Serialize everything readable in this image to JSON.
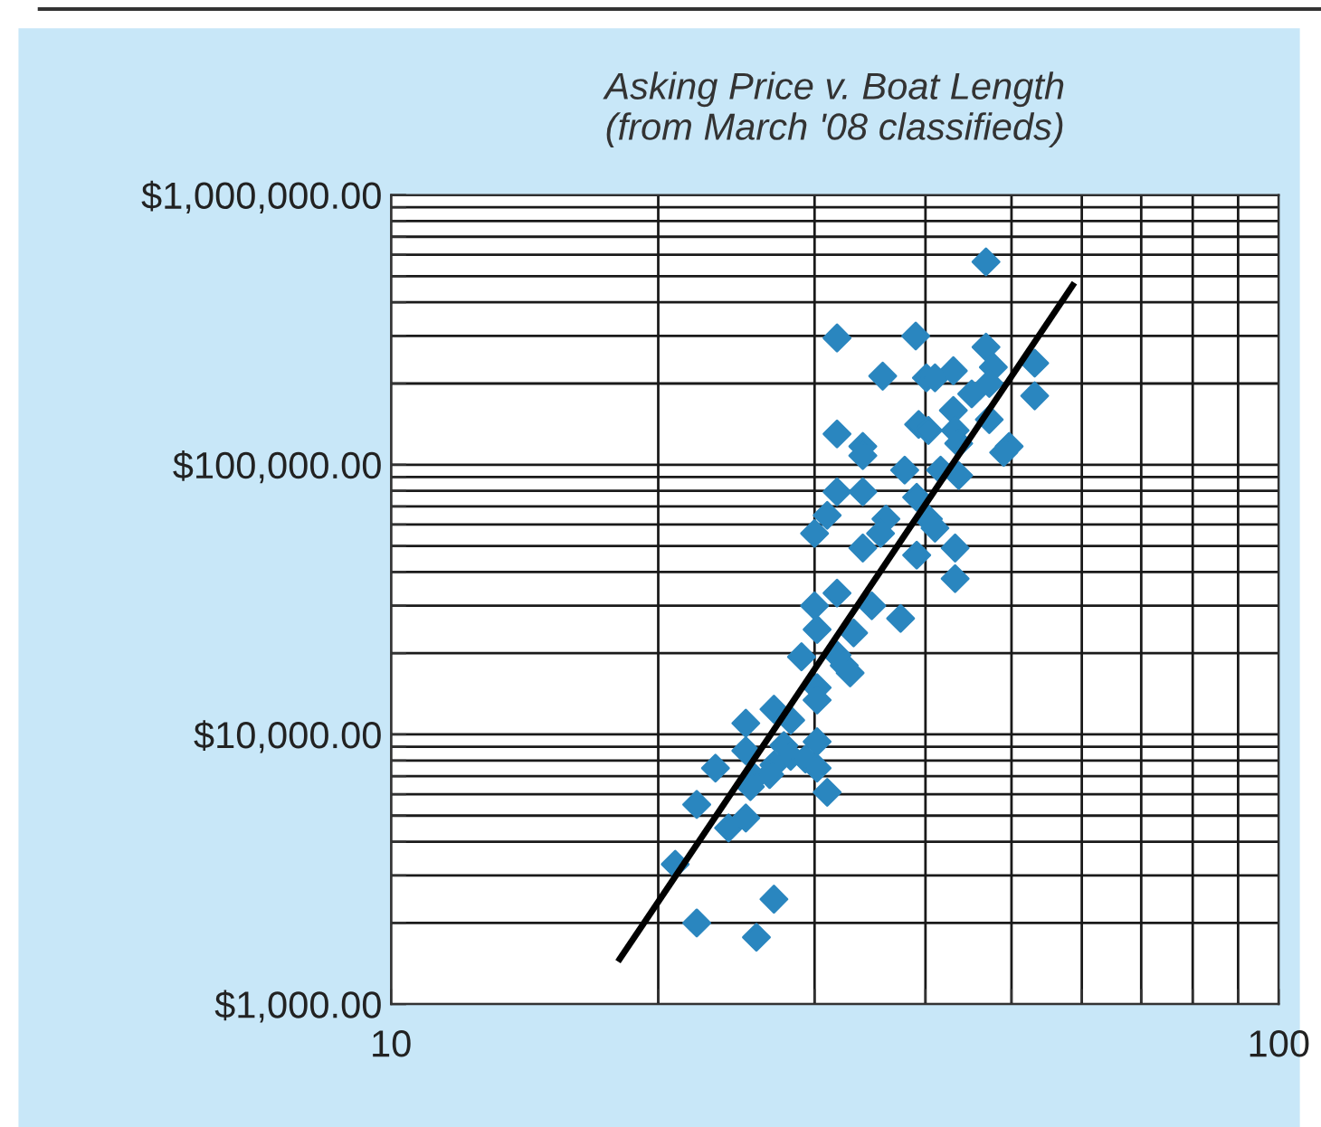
{
  "chart_data": {
    "type": "scatter",
    "title": "Asking Price v. Boat Length\n(from March '08 classifieds)",
    "log": "xy",
    "grid": true,
    "marker": "diamond",
    "legend": false,
    "xlim": [
      10,
      100
    ],
    "ylim": [
      1000,
      1000000
    ],
    "xticks": [
      {
        "value": 10,
        "label": "10"
      },
      {
        "value": 20,
        "label": null
      },
      {
        "value": 30,
        "label": null
      },
      {
        "value": 40,
        "label": null
      },
      {
        "value": 50,
        "label": null
      },
      {
        "value": 60,
        "label": null
      },
      {
        "value": 70,
        "label": null
      },
      {
        "value": 80,
        "label": null
      },
      {
        "value": 90,
        "label": null
      },
      {
        "value": 100,
        "label": "100"
      }
    ],
    "yticks": [
      {
        "value": 1000,
        "label": "$1,000.00"
      },
      {
        "value": 2000,
        "label": null
      },
      {
        "value": 3000,
        "label": null
      },
      {
        "value": 4000,
        "label": null
      },
      {
        "value": 5000,
        "label": null
      },
      {
        "value": 6000,
        "label": null
      },
      {
        "value": 7000,
        "label": null
      },
      {
        "value": 8000,
        "label": null
      },
      {
        "value": 9000,
        "label": null
      },
      {
        "value": 10000,
        "label": "$10,000.00"
      },
      {
        "value": 20000,
        "label": null
      },
      {
        "value": 30000,
        "label": null
      },
      {
        "value": 40000,
        "label": null
      },
      {
        "value": 50000,
        "label": null
      },
      {
        "value": 60000,
        "label": null
      },
      {
        "value": 70000,
        "label": null
      },
      {
        "value": 80000,
        "label": null
      },
      {
        "value": 90000,
        "label": null
      },
      {
        "value": 100000,
        "label": "$100,000.00"
      },
      {
        "value": 200000,
        "label": null
      },
      {
        "value": 300000,
        "label": null
      },
      {
        "value": 400000,
        "label": null
      },
      {
        "value": 500000,
        "label": null
      },
      {
        "value": 600000,
        "label": null
      },
      {
        "value": 700000,
        "label": null
      },
      {
        "value": 800000,
        "label": null
      },
      {
        "value": 900000,
        "label": null
      },
      {
        "value": 1000000,
        "label": "$1,000,000.00"
      }
    ],
    "series": [
      {
        "color": "#2a86bf",
        "x": [
          46.8,
          31.8,
          39.0,
          46.8,
          53.1,
          47.7,
          35.8,
          40.1,
          41.0,
          43.0,
          47.2,
          45.1,
          53.1,
          43.0,
          39.3,
          40.3,
          43.2,
          43.6,
          47.2,
          49.7,
          49.0,
          31.8,
          34.0,
          34.0,
          37.9,
          41.6,
          43.6,
          31.8,
          34.0,
          39.1,
          31.0,
          30.0,
          36.1,
          35.6,
          40.3,
          41.0,
          34.0,
          39.1,
          43.2,
          43.2,
          31.8,
          30.0,
          34.8,
          37.5,
          30.2,
          33.2,
          29.0,
          31.8,
          32.4,
          32.9,
          30.2,
          30.2,
          27.0,
          28.2,
          25.1,
          30.2,
          25.1,
          27.7,
          28.2,
          27.0,
          29.3,
          30.2,
          23.2,
          25.7,
          26.7,
          25.4,
          31.0,
          22.1,
          25.1,
          24.0,
          20.9,
          27.0,
          22.1,
          25.8
        ],
        "values": [
          565000,
          295000,
          300000,
          273000,
          238000,
          230000,
          213000,
          210000,
          210000,
          223000,
          200000,
          183000,
          180000,
          159000,
          141000,
          134000,
          134000,
          120000,
          147000,
          117000,
          111000,
          130000,
          117000,
          108000,
          95500,
          95500,
          91200,
          79300,
          79300,
          75700,
          64900,
          55600,
          62900,
          55600,
          62900,
          58200,
          49100,
          46200,
          49100,
          37800,
          33400,
          30000,
          30000,
          26900,
          24500,
          23800,
          19400,
          19700,
          18000,
          16900,
          14900,
          13400,
          12400,
          11300,
          11000,
          9400,
          8700,
          9100,
          8300,
          7700,
          8100,
          7500,
          7500,
          6900,
          7100,
          6400,
          6100,
          5500,
          4900,
          4500,
          3300,
          2450,
          2000,
          1770
        ]
      },
      {
        "type": "line",
        "color": "#000000",
        "line_style": "solid",
        "marker": "none",
        "x": [
          18.1,
          58.6
        ],
        "values": [
          1470,
          462000
        ]
      }
    ]
  }
}
